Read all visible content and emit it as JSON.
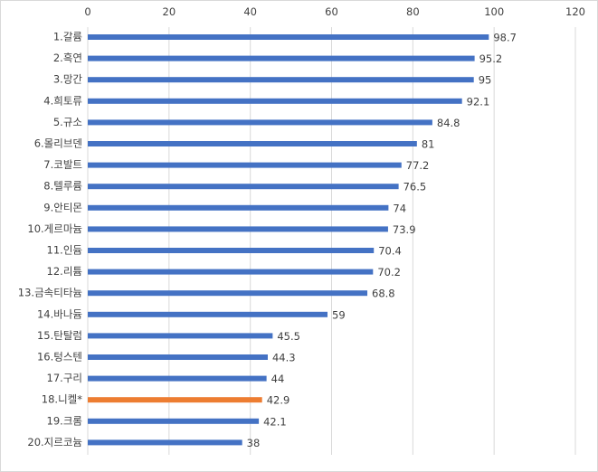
{
  "chart_data": {
    "type": "bar",
    "orientation": "horizontal",
    "title": "",
    "xlabel": "",
    "ylabel": "",
    "xlim": [
      0,
      120
    ],
    "x_ticks": [
      0,
      20,
      40,
      60,
      80,
      100,
      120
    ],
    "x_axis_position": "top",
    "grid": true,
    "legend": "none",
    "categories": [
      "1.갈륨",
      "2.흑연",
      "3.망간",
      "4.희토류",
      "5.규소",
      "6.몰리브덴",
      "7.코발트",
      "8.텔루륨",
      "9.안티몬",
      "10.게르마늄",
      "11.인듐",
      "12.리튬",
      "13.금속티타늄",
      "14.바나듐",
      "15.탄탈럼",
      "16.텅스텐",
      "17.구리",
      "18.니켈*",
      "19.크롬",
      "20.지르코늄"
    ],
    "values": [
      98.7,
      95.2,
      95,
      92.1,
      84.8,
      81,
      77.2,
      76.5,
      74,
      73.9,
      70.4,
      70.2,
      68.8,
      59,
      45.5,
      44.3,
      44,
      42.9,
      42.1,
      38
    ],
    "value_labels": [
      "98.7",
      "95.2",
      "95",
      "92.1",
      "84.8",
      "81",
      "77.2",
      "76.5",
      "74",
      "73.9",
      "70.4",
      "70.2",
      "68.8",
      "59",
      "45.5",
      "44.3",
      "44",
      "42.9",
      "42.1",
      "38"
    ],
    "highlight_index": 17,
    "colors": {
      "bar": "#4472c4",
      "highlight": "#ed7d31",
      "grid": "#d9d9d9",
      "text": "#404040"
    }
  }
}
